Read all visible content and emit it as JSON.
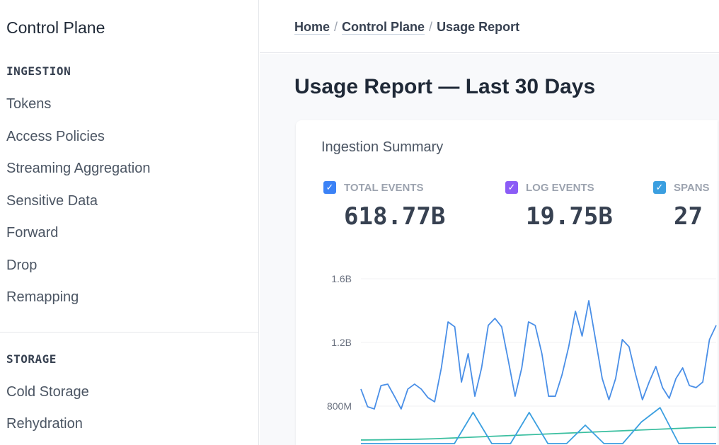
{
  "sidebar": {
    "brand": "Control Plane",
    "sections": [
      {
        "heading": "INGESTION",
        "items": [
          "Tokens",
          "Access Policies",
          "Streaming Aggregation",
          "Sensitive Data",
          "Forward",
          "Drop",
          "Remapping"
        ]
      },
      {
        "heading": "STORAGE",
        "items": [
          "Cold Storage",
          "Rehydration"
        ]
      }
    ]
  },
  "breadcrumb": [
    "Home",
    "Control Plane",
    "Usage Report"
  ],
  "page_title": "Usage Report — Last 30 Days",
  "card": {
    "title": "Ingestion Summary",
    "metrics": [
      {
        "label": "TOTAL EVENTS",
        "value": "618.77B",
        "color": "#3b82f6",
        "checked": true
      },
      {
        "label": "LOG EVENTS",
        "value": "19.75B",
        "color": "#8b5cf6",
        "checked": true
      },
      {
        "label": "SPANS",
        "value": "27",
        "color": "#3b9fe0",
        "checked": true
      }
    ]
  },
  "chart_data": {
    "type": "line",
    "ylabel": "",
    "xlabel": "",
    "yticks": [
      "1.6B",
      "1.2B",
      "800M"
    ],
    "ytick_values": [
      1.6,
      1.2,
      0.8
    ],
    "yunit": "B",
    "grid": true,
    "series": [
      {
        "color": "#4a8fe7",
        "values": [
          0.907,
          0.796,
          0.782,
          0.929,
          0.938,
          0.862,
          0.782,
          0.907,
          0.938,
          0.907,
          0.853,
          0.827,
          1.04,
          1.329,
          1.298,
          0.951,
          1.129,
          0.862,
          1.04,
          1.307,
          1.351,
          1.298,
          1.084,
          0.862,
          1.04,
          1.329,
          1.307,
          1.129,
          0.862,
          0.862,
          0.996,
          1.173,
          1.396,
          1.24,
          1.462,
          1.218,
          0.973,
          0.84,
          0.973,
          1.218,
          1.173,
          0.996,
          0.84,
          0.951,
          1.049,
          0.916,
          0.849,
          0.973,
          1.04,
          0.929,
          0.916,
          0.951,
          1.218,
          1.307
        ]
      },
      {
        "color": "#3bbfa0",
        "values": [
          0.587,
          0.588,
          0.59,
          0.592,
          0.595,
          0.6,
          0.605,
          0.61,
          0.615,
          0.62,
          0.625,
          0.63,
          0.635,
          0.64,
          0.645,
          0.65,
          0.655,
          0.66,
          0.665,
          0.667
        ]
      },
      {
        "color": "#3b9fe0",
        "values": [
          0.5,
          0.5,
          0.5,
          0.5,
          0.5,
          0.5,
          0.76,
          0.5,
          0.5,
          0.76,
          0.5,
          0.5,
          0.68,
          0.5,
          0.5,
          0.7,
          0.79,
          0.5,
          0.5,
          0.5
        ]
      }
    ]
  }
}
